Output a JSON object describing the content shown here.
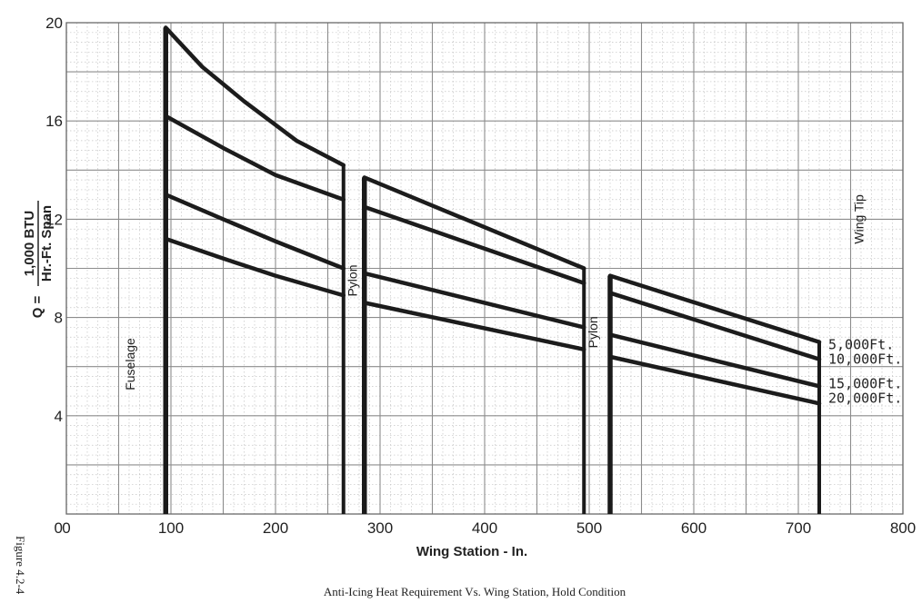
{
  "chart_data": {
    "type": "line",
    "title": "",
    "caption": "Anti-Icing Heat Requirement Vs. Wing Station, Hold Condition",
    "figure_label": "Figure 4.2-4",
    "xlabel": "Wing Station - In.",
    "ylabel_prefix": "Q =",
    "ylabel_numerator": "1,000 BTU",
    "ylabel_denominator": "Hr.-Ft. Span",
    "xlim": [
      0,
      800
    ],
    "ylim": [
      0,
      20
    ],
    "x_ticks": [
      "0",
      "100",
      "200",
      "300",
      "400",
      "500",
      "600",
      "700",
      "800"
    ],
    "y_ticks": [
      "0",
      "4",
      "8",
      "12",
      "16",
      "20"
    ],
    "grid": true,
    "annotations": [
      {
        "text": "Fuselage",
        "x": 65,
        "y": 6.1
      },
      {
        "text": "Pylon",
        "x": 278,
        "y": 9.5
      },
      {
        "text": "Pylon",
        "x": 508,
        "y": 7.4
      },
      {
        "text": "Wing Tip",
        "x": 762,
        "y": 12.0
      }
    ],
    "segments": [
      [
        95,
        265
      ],
      [
        285,
        495
      ],
      [
        520,
        720
      ]
    ],
    "series": [
      {
        "name": "5,000Ft.",
        "points": [
          [
            95,
            19.8
          ],
          [
            130,
            18.2
          ],
          [
            170,
            16.8
          ],
          [
            220,
            15.2
          ],
          [
            265,
            14.2
          ],
          [
            285,
            13.7
          ],
          [
            495,
            10.0
          ],
          [
            520,
            9.7
          ],
          [
            720,
            7.0
          ]
        ]
      },
      {
        "name": "10,000Ft.",
        "points": [
          [
            95,
            16.2
          ],
          [
            150,
            14.9
          ],
          [
            200,
            13.8
          ],
          [
            265,
            12.8
          ],
          [
            285,
            12.5
          ],
          [
            495,
            9.4
          ],
          [
            520,
            9.0
          ],
          [
            720,
            6.3
          ]
        ]
      },
      {
        "name": "15,000Ft.",
        "points": [
          [
            95,
            13.0
          ],
          [
            150,
            12.0
          ],
          [
            200,
            11.1
          ],
          [
            265,
            10.0
          ],
          [
            285,
            9.8
          ],
          [
            495,
            7.6
          ],
          [
            520,
            7.3
          ],
          [
            720,
            5.2
          ]
        ]
      },
      {
        "name": "20,000Ft.",
        "points": [
          [
            95,
            11.2
          ],
          [
            150,
            10.4
          ],
          [
            200,
            9.7
          ],
          [
            265,
            8.9
          ],
          [
            285,
            8.6
          ],
          [
            495,
            6.7
          ],
          [
            520,
            6.4
          ],
          [
            720,
            4.5
          ]
        ]
      }
    ]
  }
}
